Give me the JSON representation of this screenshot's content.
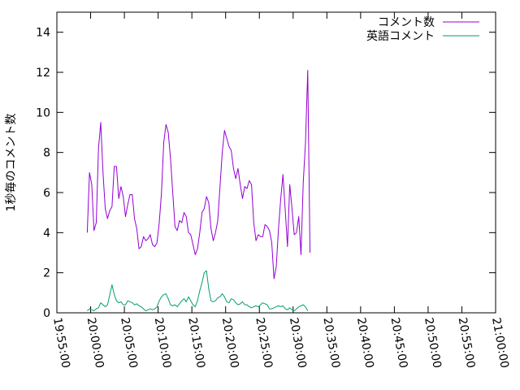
{
  "chart_data": {
    "type": "line",
    "ylabel": "1秒毎のコメント数",
    "xlim": [
      "19:55:00",
      "21:00:00"
    ],
    "ylim": [
      0,
      15
    ],
    "y_ticks": [
      0,
      2,
      4,
      6,
      8,
      10,
      12,
      14
    ],
    "x_ticks": [
      "19:55:00",
      "20:00:00",
      "20:05:00",
      "20:10:00",
      "20:15:00",
      "20:20:00",
      "20:25:00",
      "20:30:00",
      "20:35:00",
      "20:40:00",
      "20:45:00",
      "20:50:00",
      "20:55:00",
      "21:00:00"
    ],
    "grid": false,
    "legend_position": "top-right",
    "series": [
      {
        "name": "コメント数",
        "color": "#9400d3",
        "points": [
          [
            "19:59:30",
            4.0
          ],
          [
            "19:59:50",
            7.0
          ],
          [
            "20:00:10",
            6.4
          ],
          [
            "20:00:30",
            4.1
          ],
          [
            "20:00:50",
            4.5
          ],
          [
            "20:01:10",
            8.2
          ],
          [
            "20:01:30",
            9.5
          ],
          [
            "20:01:50",
            7.0
          ],
          [
            "20:02:10",
            5.2
          ],
          [
            "20:02:30",
            4.7
          ],
          [
            "20:02:50",
            5.1
          ],
          [
            "20:03:10",
            5.3
          ],
          [
            "20:03:30",
            7.3
          ],
          [
            "20:03:50",
            7.3
          ],
          [
            "20:04:10",
            5.7
          ],
          [
            "20:04:30",
            6.3
          ],
          [
            "20:04:50",
            5.8
          ],
          [
            "20:05:10",
            4.8
          ],
          [
            "20:05:30",
            5.4
          ],
          [
            "20:05:50",
            5.9
          ],
          [
            "20:06:10",
            5.9
          ],
          [
            "20:06:30",
            4.7
          ],
          [
            "20:06:50",
            4.2
          ],
          [
            "20:07:10",
            3.2
          ],
          [
            "20:07:30",
            3.3
          ],
          [
            "20:07:50",
            3.8
          ],
          [
            "20:08:10",
            3.6
          ],
          [
            "20:08:30",
            3.7
          ],
          [
            "20:08:50",
            3.9
          ],
          [
            "20:09:10",
            3.4
          ],
          [
            "20:09:30",
            3.3
          ],
          [
            "20:09:50",
            3.5
          ],
          [
            "20:10:10",
            4.5
          ],
          [
            "20:10:30",
            6.0
          ],
          [
            "20:10:50",
            8.5
          ],
          [
            "20:11:10",
            9.4
          ],
          [
            "20:11:30",
            9.0
          ],
          [
            "20:11:50",
            7.7
          ],
          [
            "20:12:10",
            6.0
          ],
          [
            "20:12:30",
            4.3
          ],
          [
            "20:12:50",
            4.1
          ],
          [
            "20:13:10",
            4.6
          ],
          [
            "20:13:30",
            4.5
          ],
          [
            "20:13:50",
            5.0
          ],
          [
            "20:14:10",
            4.8
          ],
          [
            "20:14:30",
            4.0
          ],
          [
            "20:14:50",
            3.9
          ],
          [
            "20:15:10",
            3.4
          ],
          [
            "20:15:30",
            2.9
          ],
          [
            "20:15:50",
            3.2
          ],
          [
            "20:16:10",
            4.0
          ],
          [
            "20:16:30",
            5.0
          ],
          [
            "20:16:50",
            5.2
          ],
          [
            "20:17:10",
            5.8
          ],
          [
            "20:17:30",
            5.5
          ],
          [
            "20:17:50",
            4.2
          ],
          [
            "20:18:10",
            3.6
          ],
          [
            "20:18:30",
            4.0
          ],
          [
            "20:18:50",
            4.6
          ],
          [
            "20:19:10",
            6.3
          ],
          [
            "20:19:30",
            8.0
          ],
          [
            "20:19:50",
            9.1
          ],
          [
            "20:20:10",
            8.7
          ],
          [
            "20:20:30",
            8.3
          ],
          [
            "20:20:50",
            8.1
          ],
          [
            "20:21:10",
            7.2
          ],
          [
            "20:21:30",
            6.7
          ],
          [
            "20:21:50",
            7.2
          ],
          [
            "20:22:10",
            6.4
          ],
          [
            "20:22:30",
            5.7
          ],
          [
            "20:22:50",
            6.3
          ],
          [
            "20:23:10",
            6.2
          ],
          [
            "20:23:30",
            6.6
          ],
          [
            "20:23:50",
            6.4
          ],
          [
            "20:24:10",
            4.5
          ],
          [
            "20:24:30",
            3.6
          ],
          [
            "20:24:50",
            3.9
          ],
          [
            "20:25:10",
            3.8
          ],
          [
            "20:25:30",
            3.8
          ],
          [
            "20:25:50",
            4.4
          ],
          [
            "20:26:10",
            4.3
          ],
          [
            "20:26:30",
            4.1
          ],
          [
            "20:26:50",
            3.5
          ],
          [
            "20:27:10",
            1.7
          ],
          [
            "20:27:30",
            2.3
          ],
          [
            "20:27:50",
            4.2
          ],
          [
            "20:28:10",
            5.7
          ],
          [
            "20:28:30",
            6.9
          ],
          [
            "20:28:50",
            5.1
          ],
          [
            "20:29:10",
            3.3
          ],
          [
            "20:29:30",
            6.4
          ],
          [
            "20:29:50",
            5.2
          ],
          [
            "20:30:10",
            3.9
          ],
          [
            "20:30:30",
            4.0
          ],
          [
            "20:30:50",
            4.8
          ],
          [
            "20:31:10",
            2.9
          ],
          [
            "20:31:30",
            6.5
          ],
          [
            "20:31:50",
            8.5
          ],
          [
            "20:32:10",
            12.1
          ],
          [
            "20:32:30",
            3.0
          ]
        ]
      },
      {
        "name": "英語コメント",
        "color": "#009e73",
        "points": [
          [
            "19:59:30",
            0.1
          ],
          [
            "19:59:50",
            0.2
          ],
          [
            "20:00:10",
            0.15
          ],
          [
            "20:00:30",
            0.1
          ],
          [
            "20:00:50",
            0.2
          ],
          [
            "20:01:10",
            0.25
          ],
          [
            "20:01:30",
            0.5
          ],
          [
            "20:01:50",
            0.4
          ],
          [
            "20:02:10",
            0.3
          ],
          [
            "20:02:30",
            0.4
          ],
          [
            "20:02:50",
            0.9
          ],
          [
            "20:03:10",
            1.4
          ],
          [
            "20:03:30",
            0.9
          ],
          [
            "20:03:50",
            0.6
          ],
          [
            "20:04:10",
            0.5
          ],
          [
            "20:04:30",
            0.55
          ],
          [
            "20:04:50",
            0.4
          ],
          [
            "20:05:10",
            0.4
          ],
          [
            "20:05:30",
            0.6
          ],
          [
            "20:05:50",
            0.55
          ],
          [
            "20:06:10",
            0.5
          ],
          [
            "20:06:30",
            0.4
          ],
          [
            "20:06:50",
            0.45
          ],
          [
            "20:07:10",
            0.35
          ],
          [
            "20:07:30",
            0.3
          ],
          [
            "20:07:50",
            0.2
          ],
          [
            "20:08:10",
            0.1
          ],
          [
            "20:08:30",
            0.15
          ],
          [
            "20:08:50",
            0.2
          ],
          [
            "20:09:10",
            0.15
          ],
          [
            "20:09:30",
            0.2
          ],
          [
            "20:09:50",
            0.3
          ],
          [
            "20:10:10",
            0.6
          ],
          [
            "20:10:30",
            0.8
          ],
          [
            "20:10:50",
            0.9
          ],
          [
            "20:11:10",
            0.95
          ],
          [
            "20:11:30",
            0.7
          ],
          [
            "20:11:50",
            0.4
          ],
          [
            "20:12:10",
            0.35
          ],
          [
            "20:12:30",
            0.4
          ],
          [
            "20:12:50",
            0.3
          ],
          [
            "20:13:10",
            0.45
          ],
          [
            "20:13:30",
            0.6
          ],
          [
            "20:13:50",
            0.7
          ],
          [
            "20:14:10",
            0.55
          ],
          [
            "20:14:30",
            0.8
          ],
          [
            "20:14:50",
            0.6
          ],
          [
            "20:15:10",
            0.4
          ],
          [
            "20:15:30",
            0.3
          ],
          [
            "20:15:50",
            0.6
          ],
          [
            "20:16:10",
            1.1
          ],
          [
            "20:16:30",
            1.5
          ],
          [
            "20:16:50",
            2.0
          ],
          [
            "20:17:10",
            2.1
          ],
          [
            "20:17:30",
            1.2
          ],
          [
            "20:17:50",
            0.6
          ],
          [
            "20:18:10",
            0.55
          ],
          [
            "20:18:30",
            0.6
          ],
          [
            "20:18:50",
            0.75
          ],
          [
            "20:19:10",
            0.8
          ],
          [
            "20:19:30",
            0.95
          ],
          [
            "20:19:50",
            0.8
          ],
          [
            "20:20:10",
            0.55
          ],
          [
            "20:20:30",
            0.5
          ],
          [
            "20:20:50",
            0.7
          ],
          [
            "20:21:10",
            0.65
          ],
          [
            "20:21:30",
            0.5
          ],
          [
            "20:21:50",
            0.4
          ],
          [
            "20:22:10",
            0.45
          ],
          [
            "20:22:30",
            0.55
          ],
          [
            "20:22:50",
            0.4
          ],
          [
            "20:23:10",
            0.4
          ],
          [
            "20:23:30",
            0.3
          ],
          [
            "20:23:50",
            0.25
          ],
          [
            "20:24:10",
            0.3
          ],
          [
            "20:24:30",
            0.35
          ],
          [
            "20:24:50",
            0.3
          ],
          [
            "20:25:10",
            0.4
          ],
          [
            "20:25:30",
            0.5
          ],
          [
            "20:25:50",
            0.45
          ],
          [
            "20:26:10",
            0.4
          ],
          [
            "20:26:30",
            0.2
          ],
          [
            "20:26:50",
            0.2
          ],
          [
            "20:27:10",
            0.25
          ],
          [
            "20:27:30",
            0.3
          ],
          [
            "20:27:50",
            0.35
          ],
          [
            "20:28:10",
            0.3
          ],
          [
            "20:28:30",
            0.35
          ],
          [
            "20:28:50",
            0.2
          ],
          [
            "20:29:10",
            0.15
          ],
          [
            "20:29:30",
            0.25
          ],
          [
            "20:29:50",
            0.15
          ],
          [
            "20:30:10",
            0.1
          ],
          [
            "20:30:30",
            0.2
          ],
          [
            "20:30:50",
            0.3
          ],
          [
            "20:31:10",
            0.35
          ],
          [
            "20:31:30",
            0.4
          ],
          [
            "20:31:50",
            0.3
          ],
          [
            "20:32:10",
            0.1
          ]
        ]
      }
    ]
  }
}
